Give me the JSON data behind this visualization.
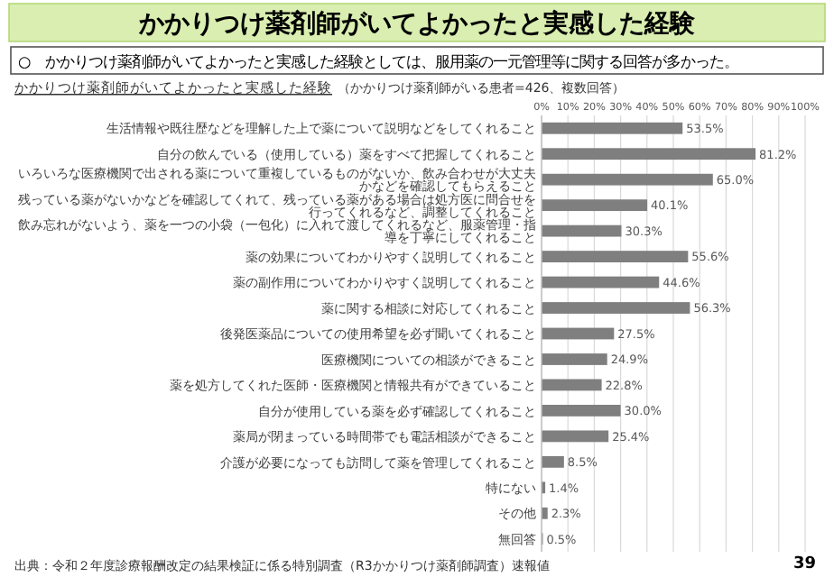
{
  "chart_data": {
    "type": "bar",
    "orientation": "horizontal",
    "title": "かかりつけ薬剤師がいてよかったと実感した経験",
    "subtitle": "○　かかりつけ薬剤師がいてよかったと実感した経験としては、服用薬の一元管理等に関する回答が多かった。",
    "annotations": [
      "かかりつけ薬剤師がいてよかったと実感した経験",
      "（かかりつけ薬剤師がいる患者=426、複数回答）",
      "出典：令和２年度診療報酬改定の結果検証に係る特別調査（R3かかりつけ薬剤師調査）速報値",
      "39"
    ],
    "categories": [
      "生活情報や既往歴などを理解した上で薬について説明などをしてくれること",
      "自分の飲んでいる（使用している）薬をすべて把握してくれること",
      "いろいろな医療機関で出される薬について重複しているものがないか、飲み合わせが大丈夫かなどを確認してもらえること",
      "残っている薬がないかなどを確認してくれて、残っている薬がある場合は処方医に問合せを行ってくれるなど、調整してくれること",
      "飲み忘れがないよう、薬を一つの小袋（一包化）に入れて渡してくれるなど、服薬管理・指導を丁寧にしてくれること",
      "薬の効果についてわかりやすく説明してくれること",
      "薬の副作用についてわかりやすく説明してくれること",
      "薬に関する相談に対応してくれること",
      "後発医薬品についての使用希望を必ず聞いてくれること",
      "医療機関についての相談ができること",
      "薬を処方してくれた医師・医療機関と情報共有ができていること",
      "自分が使用している薬を必ず確認してくれること",
      "薬局が閉まっている時間帯でも電話相談ができること",
      "介護が必要になっても訪問して薬を管理してくれること",
      "特にない",
      "その他",
      "無回答"
    ],
    "values": [
      53.5,
      81.2,
      65.0,
      40.1,
      30.3,
      55.6,
      44.6,
      56.3,
      27.5,
      24.9,
      22.8,
      30.0,
      25.4,
      8.5,
      1.4,
      2.3,
      0.5
    ],
    "value_labels": [
      "53.5%",
      "81.2%",
      "65.0%",
      "40.1%",
      "30.3%",
      "55.6%",
      "44.6%",
      "56.3%",
      "27.5%",
      "24.9%",
      "22.8%",
      "30.0%",
      "25.4%",
      "8.5%",
      "1.4%",
      "2.3%",
      "0.5%"
    ],
    "color": "#7f7f7f",
    "xlim": [
      0,
      100
    ],
    "xticks": [
      {
        "value": 0,
        "label": "0%"
      },
      {
        "value": 10,
        "label": "10%"
      },
      {
        "value": 20,
        "label": "20%"
      },
      {
        "value": 30,
        "label": "30%"
      },
      {
        "value": 40,
        "label": "40%"
      },
      {
        "value": 50,
        "label": "50%"
      },
      {
        "value": 60,
        "label": "60%"
      },
      {
        "value": 70,
        "label": "70%"
      },
      {
        "value": 80,
        "label": "80%"
      },
      {
        "value": 90,
        "label": "90%"
      },
      {
        "value": 100,
        "label": "100%"
      }
    ],
    "grid": "x"
  }
}
